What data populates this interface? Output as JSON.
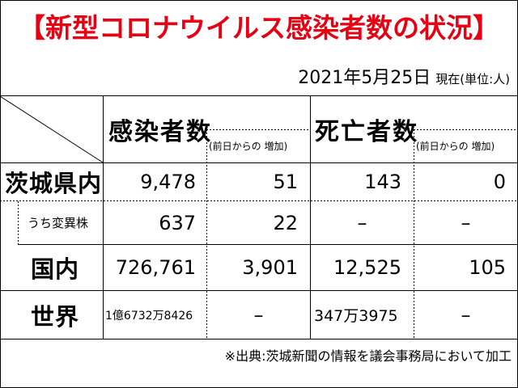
{
  "title": "【新型コロナウイルス感染者数の状況】",
  "date": "2021年5月25日",
  "date_note": "現在(単位:人)",
  "headers": {
    "cases": "感染者数",
    "cases_increase": "(前日からの 増加)",
    "deaths": "死亡者数",
    "deaths_increase": "(前日からの 増加)"
  },
  "rows": [
    {
      "label": "茨城県内",
      "cases": "9,478",
      "cases_increase": "51",
      "deaths": "143",
      "deaths_increase": "0"
    },
    {
      "label": "うち変異株",
      "cases": "637",
      "cases_increase": "22",
      "deaths": "–",
      "deaths_increase": "–"
    },
    {
      "label": "国内",
      "cases": "726,761",
      "cases_increase": "3,901",
      "deaths": "12,525",
      "deaths_increase": "105"
    },
    {
      "label": "世界",
      "cases": "1億6732万8426",
      "cases_increase": "–",
      "deaths": "347万3975",
      "deaths_increase": "–"
    }
  ],
  "source": "※出典:茨城新聞の情報を議会事務局において加工"
}
